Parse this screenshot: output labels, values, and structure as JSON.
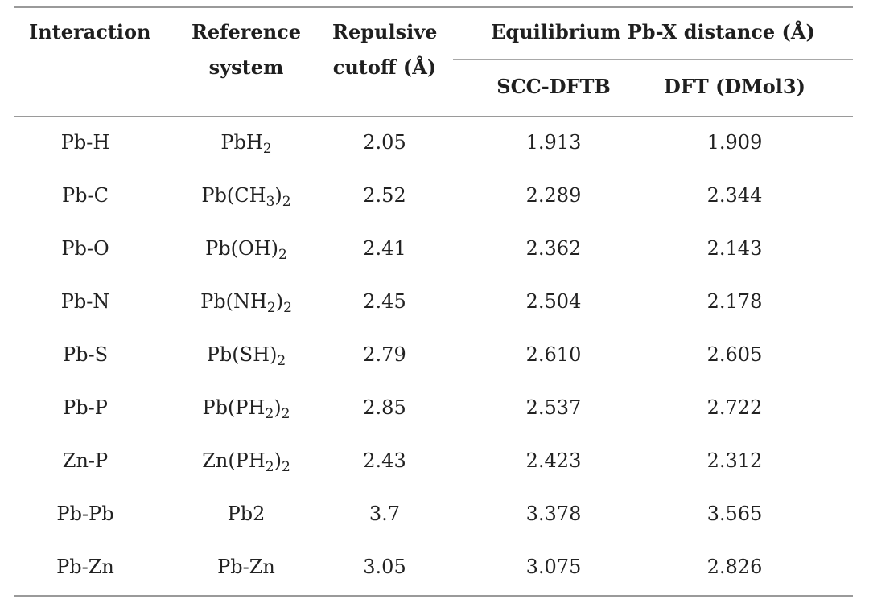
{
  "headers": {
    "interaction": "Interaction",
    "reference_line1": "Reference",
    "reference_line2": "system",
    "cutoff_line1": "Repulsive",
    "cutoff_line2": "cutoff (Å)",
    "equilibrium_group": "Equilibrium Pb-X distance (Å)",
    "scc_dftb": "SCC-DFTB",
    "dft": "DFT (DMol3)"
  },
  "rows": [
    {
      "interaction": "Pb-H",
      "reference": [
        {
          "t": "PbH"
        },
        {
          "t": "2",
          "sub": true
        }
      ],
      "cutoff": "2.05",
      "scc_dftb": "1.913",
      "dft": "1.909"
    },
    {
      "interaction": "Pb-C",
      "reference": [
        {
          "t": "Pb(CH"
        },
        {
          "t": "3",
          "sub": true
        },
        {
          "t": ")"
        },
        {
          "t": "2",
          "sub": true
        }
      ],
      "cutoff": "2.52",
      "scc_dftb": "2.289",
      "dft": "2.344"
    },
    {
      "interaction": "Pb-O",
      "reference": [
        {
          "t": "Pb(OH)"
        },
        {
          "t": "2",
          "sub": true
        }
      ],
      "cutoff": "2.41",
      "scc_dftb": "2.362",
      "dft": "2.143"
    },
    {
      "interaction": "Pb-N",
      "reference": [
        {
          "t": "Pb(NH"
        },
        {
          "t": "2",
          "sub": true
        },
        {
          "t": ")"
        },
        {
          "t": "2",
          "sub": true
        }
      ],
      "cutoff": "2.45",
      "scc_dftb": "2.504",
      "dft": "2.178"
    },
    {
      "interaction": "Pb-S",
      "reference": [
        {
          "t": "Pb(SH)"
        },
        {
          "t": "2",
          "sub": true
        }
      ],
      "cutoff": "2.79",
      "scc_dftb": "2.610",
      "dft": "2.605"
    },
    {
      "interaction": "Pb-P",
      "reference": [
        {
          "t": "Pb(PH"
        },
        {
          "t": "2",
          "sub": true
        },
        {
          "t": ")"
        },
        {
          "t": "2",
          "sub": true
        }
      ],
      "cutoff": "2.85",
      "scc_dftb": "2.537",
      "dft": "2.722"
    },
    {
      "interaction": "Zn-P",
      "reference": [
        {
          "t": "Zn(PH"
        },
        {
          "t": "2",
          "sub": true
        },
        {
          "t": ")"
        },
        {
          "t": "2",
          "sub": true
        }
      ],
      "cutoff": "2.43",
      "scc_dftb": "2.423",
      "dft": "2.312"
    },
    {
      "interaction": "Pb-Pb",
      "reference": [
        {
          "t": "Pb2"
        }
      ],
      "cutoff": "3.7",
      "scc_dftb": "3.378",
      "dft": "3.565"
    },
    {
      "interaction": "Pb-Zn",
      "reference": [
        {
          "t": "Pb-Zn"
        }
      ],
      "cutoff": "3.05",
      "scc_dftb": "3.075",
      "dft": "2.826"
    }
  ]
}
